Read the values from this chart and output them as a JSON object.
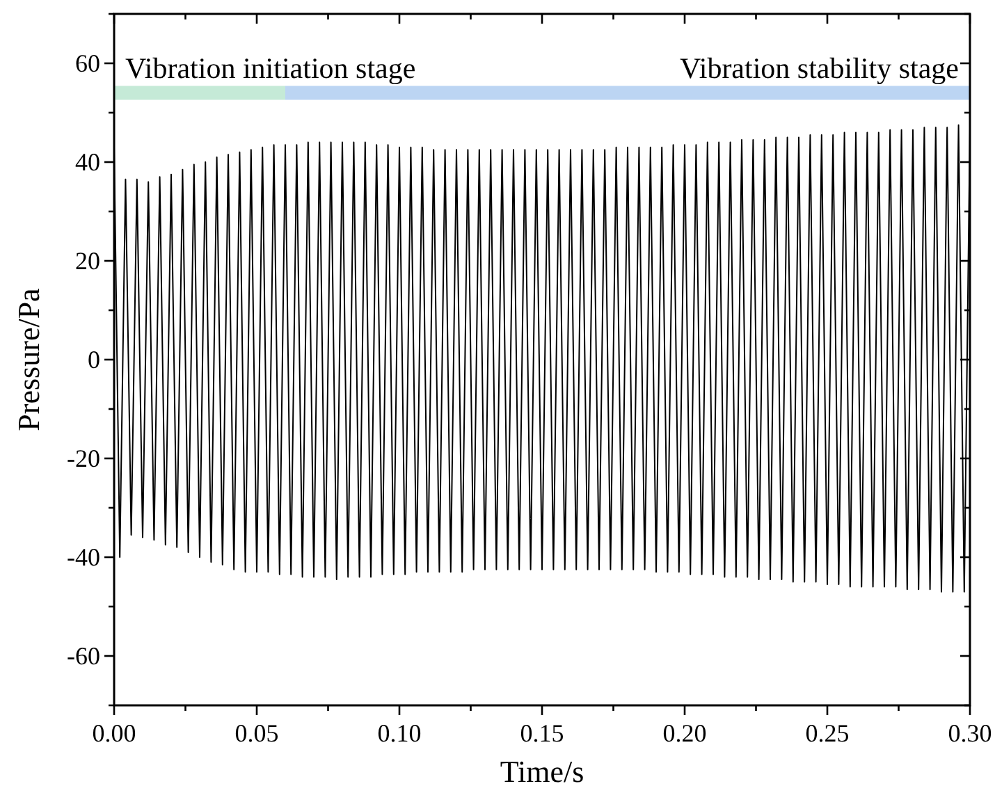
{
  "chart_data": {
    "type": "line",
    "xlabel": "Time/s",
    "ylabel": "Pressure/Pa",
    "xlim": [
      0,
      0.3
    ],
    "ylim": [
      -70,
      70
    ],
    "xticks": [
      {
        "value": 0,
        "label": "0.00"
      },
      {
        "value": 0.025,
        "label": null
      },
      {
        "value": 0.05,
        "label": "0.05"
      },
      {
        "value": 0.075,
        "label": null
      },
      {
        "value": 0.1,
        "label": "0.10"
      },
      {
        "value": 0.125,
        "label": null
      },
      {
        "value": 0.15,
        "label": "0.15"
      },
      {
        "value": 0.175,
        "label": null
      },
      {
        "value": 0.2,
        "label": "0.20"
      },
      {
        "value": 0.225,
        "label": null
      },
      {
        "value": 0.25,
        "label": "0.25"
      },
      {
        "value": 0.275,
        "label": null
      },
      {
        "value": 0.3,
        "label": "0.30"
      }
    ],
    "yticks": [
      {
        "value": -70,
        "label": null
      },
      -60,
      {
        "value": -50,
        "label": null
      },
      -40,
      {
        "value": -30,
        "label": null
      },
      -20,
      {
        "value": -10,
        "label": null
      },
      0,
      {
        "value": 10,
        "label": null
      },
      20,
      {
        "value": 30,
        "label": null
      },
      40,
      {
        "value": 50,
        "label": null
      },
      60,
      {
        "value": 70,
        "label": null
      }
    ],
    "grid": false,
    "marker": "none",
    "line_style": "solid",
    "series": [
      {
        "name": "Vibration initiation stage",
        "color": "#c5ead7",
        "x": [
          0,
          0.06
        ],
        "values": [
          54,
          54
        ]
      },
      {
        "name": "Vibration stability stage",
        "color": "#bcd5f3",
        "x": [
          0.06,
          0.3
        ],
        "values": [
          54,
          54
        ]
      },
      {
        "color": "#000000",
        "x": [
          0,
          0.002,
          0.004,
          0.006,
          0.008,
          0.01,
          0.012,
          0.014,
          0.016,
          0.018,
          0.02,
          0.022,
          0.024,
          0.026,
          0.028,
          0.03,
          0.032,
          0.034,
          0.036,
          0.038,
          0.04,
          0.042,
          0.044,
          0.046,
          0.048,
          0.05,
          0.052,
          0.054,
          0.056,
          0.058,
          0.06,
          0.062,
          0.064,
          0.066,
          0.068,
          0.07,
          0.072,
          0.074,
          0.076,
          0.078,
          0.08,
          0.082,
          0.084,
          0.086,
          0.088,
          0.09,
          0.092,
          0.094,
          0.096,
          0.098,
          0.1,
          0.102,
          0.104,
          0.106,
          0.108,
          0.11,
          0.112,
          0.114,
          0.116,
          0.118,
          0.12,
          0.122,
          0.124,
          0.126,
          0.128,
          0.13,
          0.132,
          0.134,
          0.136,
          0.138,
          0.14,
          0.142,
          0.144,
          0.146,
          0.148,
          0.15,
          0.152,
          0.154,
          0.156,
          0.158,
          0.16,
          0.162,
          0.164,
          0.166,
          0.168,
          0.17,
          0.172,
          0.174,
          0.176,
          0.178,
          0.18,
          0.182,
          0.184,
          0.186,
          0.188,
          0.19,
          0.192,
          0.194,
          0.196,
          0.198,
          0.2,
          0.202,
          0.204,
          0.206,
          0.208,
          0.21,
          0.212,
          0.214,
          0.216,
          0.218,
          0.22,
          0.222,
          0.224,
          0.226,
          0.228,
          0.23,
          0.232,
          0.234,
          0.236,
          0.238,
          0.24,
          0.242,
          0.244,
          0.246,
          0.248,
          0.25,
          0.252,
          0.254,
          0.256,
          0.258,
          0.26,
          0.262,
          0.264,
          0.266,
          0.268,
          0.27,
          0.272,
          0.274,
          0.276,
          0.278,
          0.28,
          0.282,
          0.284,
          0.286,
          0.288,
          0.29,
          0.292,
          0.294,
          0.296,
          0.298,
          0.3
        ],
        "values": [
          43,
          -40,
          36.5,
          -35.5,
          36.5,
          -36,
          36,
          -36.5,
          37,
          -37.5,
          37.5,
          -38,
          38.5,
          -39,
          39.5,
          -40,
          40,
          -41,
          41,
          -41.5,
          41.5,
          -42.5,
          42,
          -43,
          42.5,
          -43,
          43,
          -43,
          43.5,
          -43.5,
          43.5,
          -43.5,
          43.5,
          -44,
          44,
          -44,
          44,
          -44,
          44,
          -44.5,
          44,
          -44,
          44,
          -44,
          44,
          -44,
          43.5,
          -43.5,
          43.5,
          -43.5,
          43,
          -43.5,
          43,
          -43,
          43,
          -43,
          42.5,
          -43,
          42.5,
          -43,
          42.5,
          -43,
          42.5,
          -42.5,
          42.5,
          -42.5,
          42.5,
          -42.5,
          42.5,
          -42.5,
          42.5,
          -42.5,
          42.5,
          -42.5,
          42.5,
          -42.5,
          42.5,
          -42.5,
          42.5,
          -42.5,
          42.5,
          -42.5,
          42.5,
          -42.5,
          42.5,
          -42.5,
          42.5,
          -42.5,
          43,
          -42.5,
          43,
          -42.5,
          43,
          -42.5,
          43,
          -43,
          43,
          -43,
          43.5,
          -43,
          43.5,
          -43.5,
          43.5,
          -43.5,
          44,
          -43.5,
          44,
          -44,
          44,
          -44,
          44.5,
          -44,
          44.5,
          -44.5,
          44.5,
          -44.5,
          45,
          -44.5,
          45,
          -45,
          45,
          -45,
          45.5,
          -45,
          45.5,
          -45.5,
          45.5,
          -45.5,
          46,
          -46,
          46,
          -46,
          46,
          -46,
          46,
          -46,
          46.5,
          -46,
          46.5,
          -46.5,
          46.5,
          -46.5,
          47,
          -46.5,
          47,
          -47,
          47,
          -47,
          47.5,
          -47,
          47
        ]
      }
    ]
  }
}
